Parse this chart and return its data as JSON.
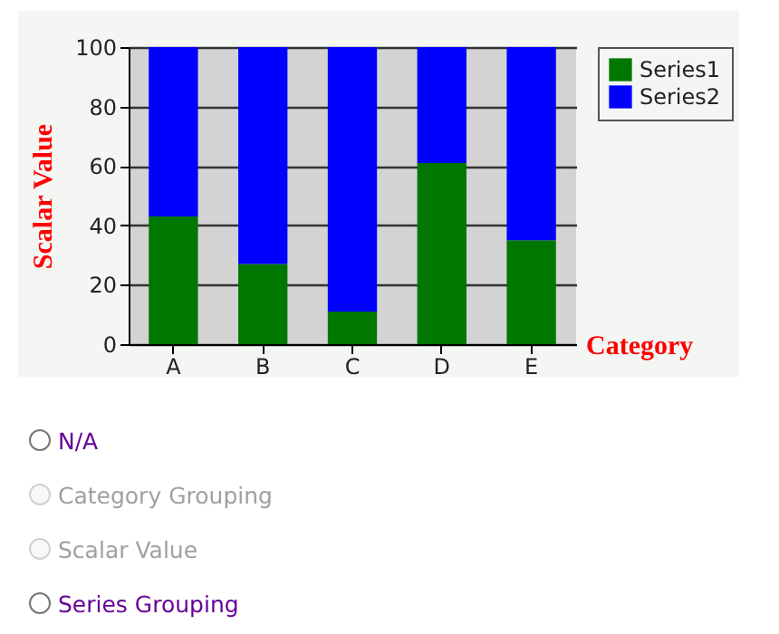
{
  "chart_data": {
    "type": "bar",
    "stacked": true,
    "xlabel": "Category",
    "ylabel": "Scalar Value",
    "categories": [
      "A",
      "B",
      "C",
      "D",
      "E"
    ],
    "series": [
      {
        "name": "Series1",
        "color": "#007700",
        "values": [
          43,
          27,
          11,
          61,
          35
        ]
      },
      {
        "name": "Series2",
        "color": "#0000ff",
        "values": [
          57,
          73,
          89,
          39,
          65
        ]
      }
    ],
    "ylim": [
      0,
      100
    ],
    "yticks": [
      0,
      20,
      40,
      60,
      80,
      100
    ],
    "grid": "y",
    "legend": "right",
    "annotations": [
      "N/A",
      "Category Grouping",
      "Scalar Value",
      "Series Grouping"
    ]
  }
}
